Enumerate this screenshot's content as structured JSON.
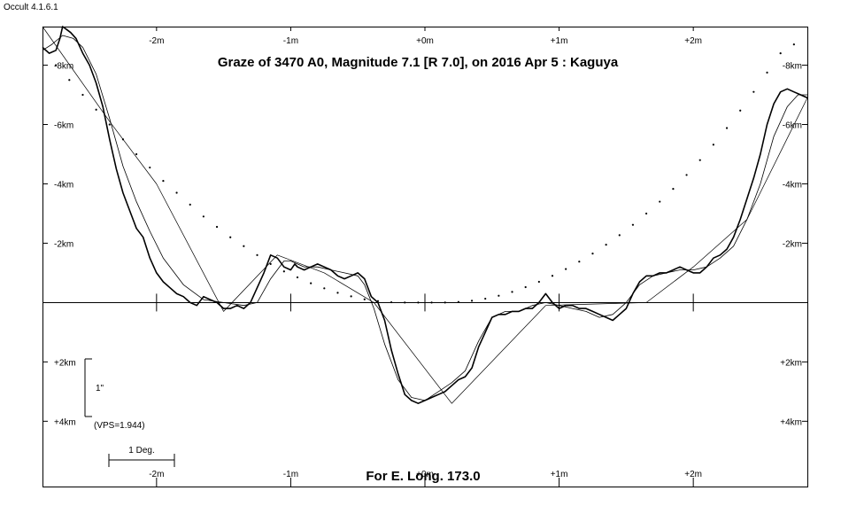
{
  "app": {
    "version_label": "Occult 4.1.6.1"
  },
  "chart_data": {
    "type": "line",
    "title": "Graze of  3470 A0,  Magnitude 7.1 [R 7.0],  on 2016 Apr  5  :  Kaguya",
    "footer": "For E. Long. 173.0",
    "x_ticks": [
      "-2m",
      "-1m",
      "+0m",
      "+1m",
      "+2m"
    ],
    "x_tick_values": [
      -2,
      -1,
      0,
      1,
      2
    ],
    "y_ticks_upper": [
      "-8km",
      "-6km",
      "-4km",
      "-2km"
    ],
    "y_ticks_upper_values": [
      -8,
      -6,
      -4,
      -2
    ],
    "y_ticks_lower": [
      "+2km",
      "+4km"
    ],
    "y_ticks_lower_values": [
      2,
      4
    ],
    "xlim": [
      -2.85,
      2.85
    ],
    "ylim": [
      -9.3,
      6.2
    ],
    "scale_bar": {
      "label": "1\"",
      "vps_label": "(VPS=1.944)",
      "from_km": 2,
      "to_km": 4
    },
    "deg_bar": {
      "label": "1 Deg."
    },
    "series": [
      {
        "kind": "profile-detailed",
        "x": [
          -2.85,
          -2.8,
          -2.75,
          -2.72,
          -2.7,
          -2.67,
          -2.64,
          -2.6,
          -2.55,
          -2.5,
          -2.45,
          -2.4,
          -2.35,
          -2.3,
          -2.25,
          -2.2,
          -2.15,
          -2.1,
          -2.05,
          -2.0,
          -1.95,
          -1.9,
          -1.85,
          -1.8,
          -1.75,
          -1.7,
          -1.65,
          -1.6,
          -1.55,
          -1.5,
          -1.45,
          -1.4,
          -1.35,
          -1.3,
          -1.25,
          -1.2,
          -1.15,
          -1.1,
          -1.05,
          -1.0,
          -0.97,
          -0.95,
          -0.9,
          -0.85,
          -0.8,
          -0.75,
          -0.7,
          -0.65,
          -0.6,
          -0.55,
          -0.5,
          -0.45,
          -0.4,
          -0.35,
          -0.3,
          -0.25,
          -0.2,
          -0.15,
          -0.1,
          -0.05,
          0.0,
          0.05,
          0.1,
          0.15,
          0.2,
          0.25,
          0.3,
          0.35,
          0.4,
          0.45,
          0.5,
          0.55,
          0.6,
          0.65,
          0.7,
          0.75,
          0.8,
          0.85,
          0.9,
          0.95,
          1.0,
          1.05,
          1.1,
          1.15,
          1.2,
          1.25,
          1.3,
          1.35,
          1.4,
          1.45,
          1.5,
          1.55,
          1.6,
          1.65,
          1.7,
          1.75,
          1.8,
          1.85,
          1.9,
          1.95,
          2.0,
          2.05,
          2.1,
          2.15,
          2.2,
          2.25,
          2.3,
          2.35,
          2.4,
          2.45,
          2.5,
          2.55,
          2.6,
          2.65,
          2.7,
          2.75,
          2.8,
          2.85
        ],
        "y": [
          -8.6,
          -8.4,
          -8.5,
          -8.9,
          -9.3,
          -9.2,
          -9.1,
          -8.9,
          -8.4,
          -8.0,
          -7.4,
          -6.6,
          -5.5,
          -4.5,
          -3.7,
          -3.1,
          -2.5,
          -2.2,
          -1.5,
          -1.0,
          -0.7,
          -0.5,
          -0.3,
          -0.2,
          0.0,
          0.1,
          -0.2,
          -0.1,
          0.0,
          0.2,
          0.2,
          0.1,
          0.2,
          0.0,
          -0.5,
          -1.0,
          -1.6,
          -1.5,
          -1.2,
          -1.1,
          -1.3,
          -1.2,
          -1.1,
          -1.2,
          -1.3,
          -1.2,
          -1.1,
          -0.9,
          -0.8,
          -0.9,
          -1.0,
          -0.8,
          -0.2,
          0.0,
          0.6,
          1.6,
          2.4,
          3.1,
          3.3,
          3.4,
          3.3,
          3.2,
          3.1,
          3.0,
          2.8,
          2.6,
          2.5,
          2.2,
          1.5,
          1.0,
          0.5,
          0.4,
          0.4,
          0.3,
          0.3,
          0.2,
          0.2,
          0.0,
          -0.3,
          0.0,
          0.2,
          0.1,
          0.1,
          0.2,
          0.2,
          0.3,
          0.4,
          0.5,
          0.6,
          0.4,
          0.2,
          -0.3,
          -0.7,
          -0.9,
          -0.9,
          -1.0,
          -1.0,
          -1.1,
          -1.2,
          -1.1,
          -1.0,
          -1.0,
          -1.2,
          -1.5,
          -1.6,
          -1.8,
          -2.2,
          -2.8,
          -3.5,
          -4.2,
          -5.0,
          -6.0,
          -6.7,
          -7.1,
          -7.2,
          -7.1,
          -7.0,
          -6.9
        ]
      },
      {
        "kind": "profile-smooth",
        "x": [
          -2.85,
          -2.78,
          -2.7,
          -2.62,
          -2.55,
          -2.45,
          -2.35,
          -2.25,
          -2.15,
          -2.05,
          -1.95,
          -1.8,
          -1.65,
          -1.5,
          -1.35,
          -1.25,
          -1.15,
          -1.05,
          -1.0,
          -0.95,
          -0.9,
          -0.85,
          -0.8,
          -0.7,
          -0.6,
          -0.5,
          -0.45,
          -0.38,
          -0.3,
          -0.2,
          -0.1,
          0.0,
          0.1,
          0.2,
          0.3,
          0.4,
          0.5,
          0.6,
          0.7,
          0.8,
          0.9,
          1.0,
          1.1,
          1.2,
          1.3,
          1.4,
          1.5,
          1.6,
          1.7,
          1.8,
          1.9,
          2.0,
          2.1,
          2.2,
          2.3,
          2.4,
          2.5,
          2.6,
          2.7,
          2.78,
          2.85
        ],
        "y": [
          -8.5,
          -8.7,
          -9.0,
          -8.9,
          -8.6,
          -7.7,
          -6.2,
          -4.6,
          -3.4,
          -2.4,
          -1.5,
          -0.6,
          -0.1,
          0.0,
          0.1,
          0.0,
          -0.8,
          -1.4,
          -1.4,
          -1.3,
          -1.2,
          -1.2,
          -1.2,
          -1.1,
          -1.0,
          -0.9,
          -0.6,
          0.2,
          1.4,
          2.6,
          3.2,
          3.3,
          3.0,
          2.7,
          2.3,
          1.3,
          0.5,
          0.3,
          0.3,
          0.1,
          0.0,
          0.1,
          0.2,
          0.3,
          0.5,
          0.4,
          0.0,
          -0.6,
          -0.9,
          -1.0,
          -1.1,
          -1.1,
          -1.2,
          -1.5,
          -1.9,
          -2.8,
          -4.0,
          -5.6,
          -6.6,
          -7.0,
          -7.0
        ]
      },
      {
        "kind": "straight-limb",
        "x": [
          -2.85,
          -2.35,
          -2.0,
          -1.5,
          -1.1,
          -0.75,
          -0.38,
          0.2,
          0.9,
          1.65,
          2.0,
          2.4,
          2.85
        ],
        "y": [
          -9.3,
          -6.1,
          -4.0,
          0.3,
          -1.6,
          -1.0,
          0.0,
          3.4,
          0.1,
          0.0,
          -1.2,
          -2.8,
          -6.9
        ]
      },
      {
        "kind": "limit-dots",
        "x": [
          -2.75,
          -2.65,
          -2.55,
          -2.45,
          -2.35,
          -2.25,
          -2.15,
          -2.05,
          -1.95,
          -1.85,
          -1.75,
          -1.65,
          -1.55,
          -1.45,
          -1.35,
          -1.25,
          -1.15,
          -1.05,
          -0.95,
          -0.85,
          -0.75,
          -0.65,
          -0.55,
          -0.45,
          -0.35,
          -0.25,
          -0.15,
          -0.05,
          0.05,
          0.15,
          0.25,
          0.35,
          0.45,
          0.55,
          0.65,
          0.75,
          0.85,
          0.95,
          1.05,
          1.15,
          1.25,
          1.35,
          1.45,
          1.55,
          1.65,
          1.75,
          1.85,
          1.95,
          2.05,
          2.15,
          2.25,
          2.35,
          2.45,
          2.55,
          2.65,
          2.75
        ],
        "y": [
          -8.0,
          -7.5,
          -7.0,
          -6.5,
          -6.0,
          -5.5,
          -5.0,
          -4.55,
          -4.1,
          -3.7,
          -3.3,
          -2.9,
          -2.55,
          -2.2,
          -1.9,
          -1.6,
          -1.3,
          -1.05,
          -0.85,
          -0.65,
          -0.48,
          -0.33,
          -0.21,
          -0.11,
          -0.05,
          -0.01,
          0.0,
          0.0,
          0.0,
          0.0,
          -0.02,
          -0.06,
          -0.13,
          -0.23,
          -0.36,
          -0.52,
          -0.7,
          -0.9,
          -1.13,
          -1.38,
          -1.65,
          -1.95,
          -2.27,
          -2.62,
          -3.0,
          -3.4,
          -3.83,
          -4.3,
          -4.8,
          -5.32,
          -5.88,
          -6.47,
          -7.1,
          -7.75,
          -8.4,
          -8.7
        ]
      }
    ]
  }
}
